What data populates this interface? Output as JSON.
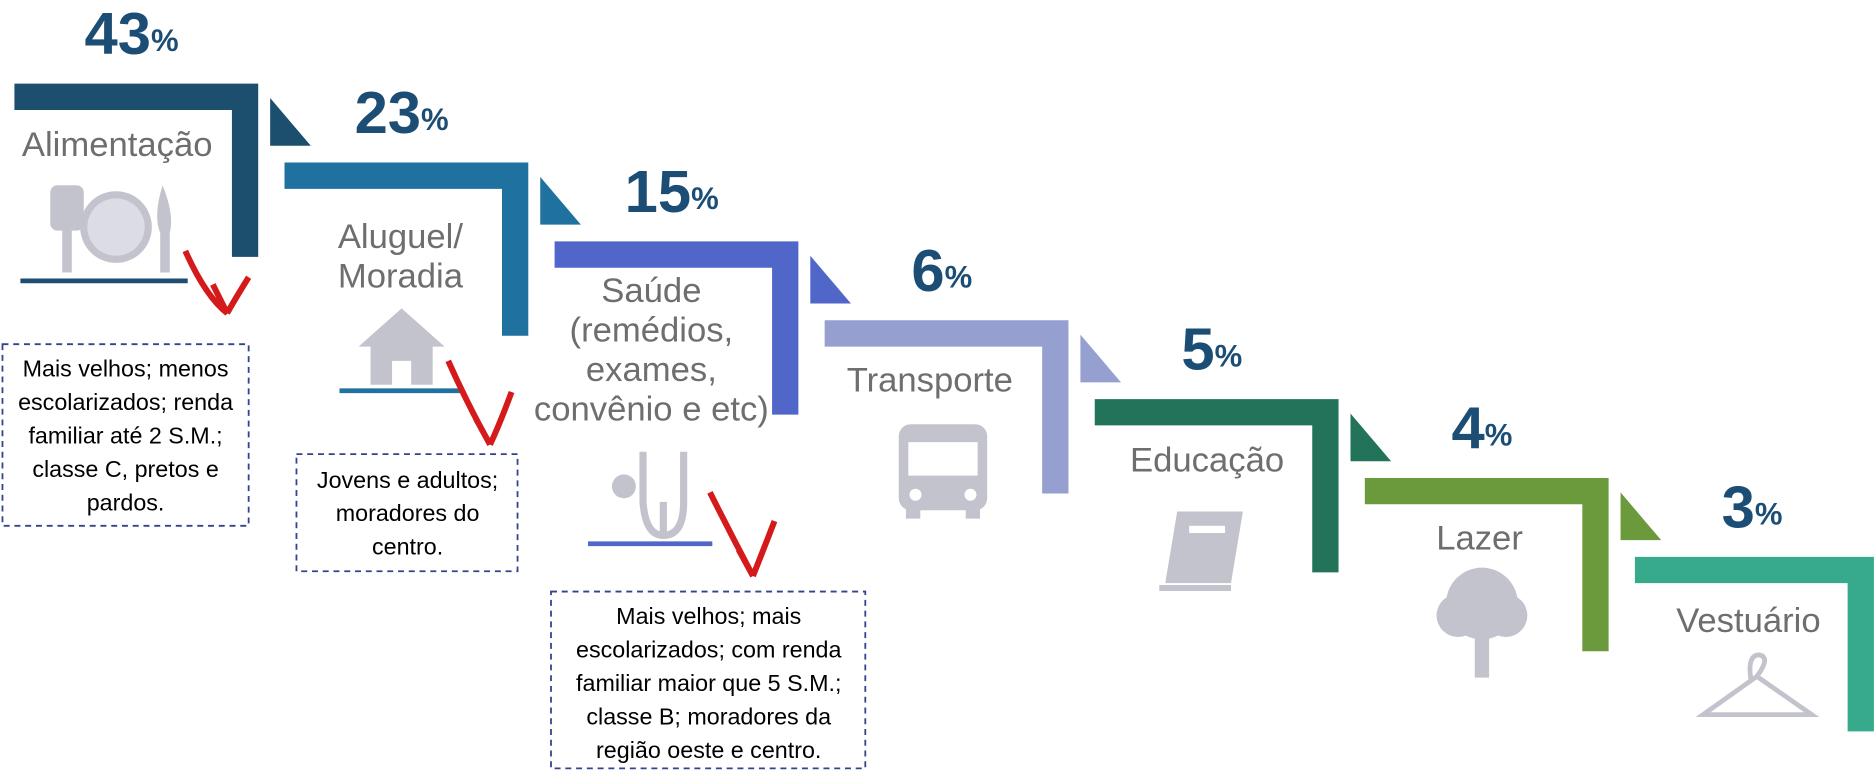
{
  "unit": "%",
  "steps": [
    {
      "percent": 43,
      "label": [
        "Alimentação"
      ],
      "color": "#1c4e6e",
      "note": [
        "Mais velhos; menos",
        "escolarizados; renda",
        "familiar até 2 S.M.;",
        "classe C, pretos e",
        "pardos."
      ]
    },
    {
      "percent": 23,
      "label": [
        "Aluguel/",
        "Moradia"
      ],
      "color": "#1f72a0",
      "note": [
        "Jovens e adultos;",
        "moradores do",
        "centro."
      ]
    },
    {
      "percent": 15,
      "label": [
        "Saúde",
        "(remédios,",
        "exames,",
        "convênio e etc)"
      ],
      "color": "#5066c9",
      "note": [
        "Mais velhos; mais",
        "escolarizados; com renda",
        "familiar maior que 5 S.M.;",
        "classe B; moradores da",
        "região oeste e centro."
      ]
    },
    {
      "percent": 6,
      "label": [
        "Transporte"
      ],
      "color": "#959fd0"
    },
    {
      "percent": 5,
      "label": [
        "Educação"
      ],
      "color": "#23735a"
    },
    {
      "percent": 4,
      "label": [
        "Lazer"
      ],
      "color": "#6b9a3c"
    },
    {
      "percent": 3,
      "label": [
        "Vestuário"
      ],
      "color": "#36aa8a"
    }
  ]
}
